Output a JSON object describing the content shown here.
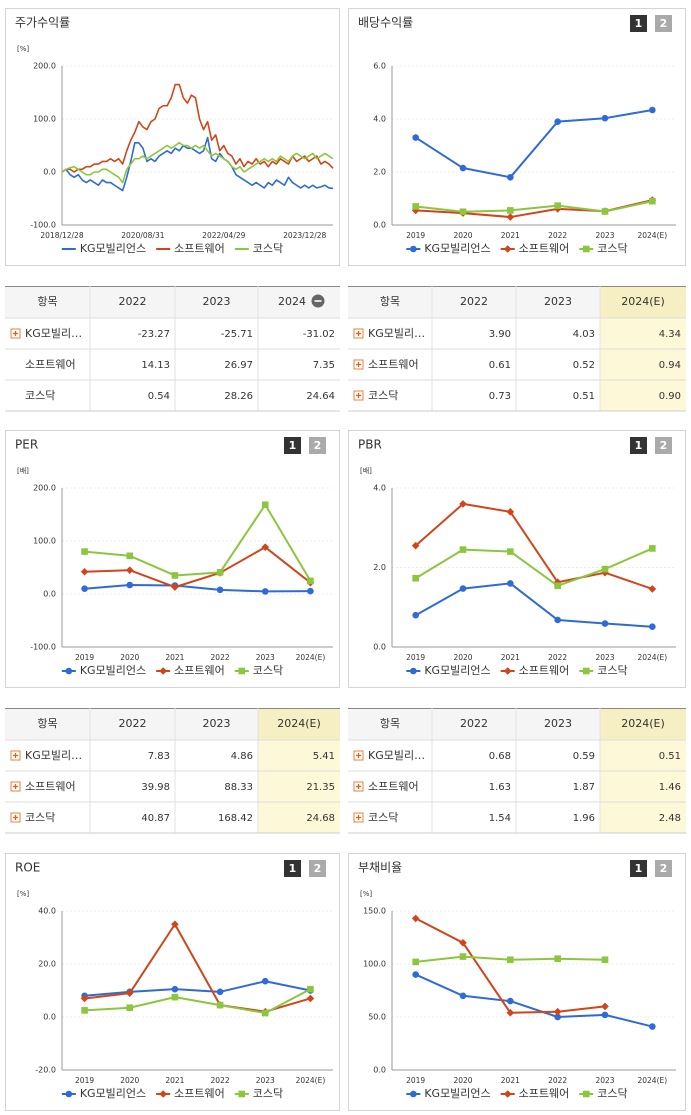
{
  "chart_data": [
    {
      "type": "line",
      "title": "주가수익률",
      "ylabel": "[%]",
      "markers": false,
      "grid": true,
      "categories": [
        "2018/12/28",
        null,
        null,
        null,
        null,
        null,
        null,
        null,
        null,
        null,
        null,
        null,
        null,
        null,
        null,
        null,
        null,
        null,
        null,
        null,
        "2020/08/31",
        null,
        null,
        null,
        null,
        null,
        null,
        null,
        null,
        null,
        null,
        null,
        null,
        null,
        null,
        null,
        null,
        null,
        null,
        null,
        "2022/04/29",
        null,
        null,
        null,
        null,
        null,
        null,
        null,
        null,
        null,
        null,
        null,
        null,
        null,
        null,
        null,
        null,
        null,
        null,
        null,
        "2023/12/28",
        null,
        null,
        null,
        null,
        null,
        null,
        null
      ],
      "ylim": [
        -100,
        200
      ],
      "yticks": [
        {
          "value": -100,
          "label": "-100.0"
        },
        {
          "value": 0,
          "label": "0.0"
        },
        {
          "value": 100,
          "label": "100.0"
        },
        {
          "value": 200,
          "label": "200.0"
        }
      ],
      "series": [
        {
          "name": "KG모빌리언스",
          "color": "#2f6bd5",
          "values": [
            0,
            5,
            -5,
            -10,
            -5,
            -15,
            -20,
            -15,
            -20,
            -25,
            -15,
            -20,
            -20,
            -25,
            -30,
            -35,
            -10,
            20,
            55,
            55,
            45,
            20,
            25,
            20,
            30,
            35,
            40,
            35,
            45,
            40,
            50,
            45,
            45,
            40,
            35,
            40,
            65,
            25,
            20,
            35,
            25,
            20,
            10,
            -5,
            -10,
            -15,
            -20,
            -25,
            -20,
            -25,
            -30,
            -20,
            -25,
            -15,
            -20,
            -25,
            -10,
            -20,
            -25,
            -30,
            -25,
            -30,
            -25,
            -30,
            -28,
            -25,
            -30,
            -31
          ]
        },
        {
          "name": "소프트웨어",
          "color": "#d0461a",
          "values": [
            0,
            5,
            5,
            0,
            5,
            5,
            10,
            10,
            15,
            15,
            20,
            20,
            25,
            20,
            25,
            15,
            40,
            60,
            75,
            95,
            85,
            80,
            95,
            100,
            120,
            125,
            125,
            140,
            165,
            165,
            140,
            130,
            145,
            140,
            100,
            80,
            95,
            60,
            70,
            40,
            50,
            35,
            30,
            15,
            25,
            10,
            20,
            15,
            25,
            15,
            20,
            10,
            20,
            15,
            25,
            20,
            15,
            30,
            20,
            25,
            30,
            20,
            25,
            30,
            15,
            20,
            15,
            7
          ]
        },
        {
          "name": "코스닥",
          "color": "#8cc63e",
          "values": [
            0,
            5,
            8,
            10,
            5,
            0,
            -5,
            -5,
            0,
            0,
            5,
            5,
            0,
            -5,
            -10,
            -20,
            5,
            15,
            25,
            25,
            30,
            25,
            30,
            35,
            40,
            45,
            50,
            45,
            50,
            55,
            50,
            50,
            45,
            50,
            45,
            50,
            40,
            30,
            35,
            30,
            25,
            20,
            10,
            5,
            10,
            0,
            5,
            10,
            15,
            20,
            25,
            20,
            25,
            20,
            30,
            25,
            20,
            30,
            35,
            30,
            25,
            30,
            35,
            25,
            30,
            35,
            30,
            25
          ]
        }
      ]
    },
    {
      "type": "line",
      "title": "배당수익률",
      "tabs": [
        "1",
        "2"
      ],
      "grid": true,
      "categories": [
        "2019",
        "2020",
        "2021",
        "2022",
        "2023",
        "2024(E)"
      ],
      "ylim": [
        0,
        6
      ],
      "yticks": [
        {
          "value": 0,
          "label": "0.0"
        },
        {
          "value": 2,
          "label": "2.0"
        },
        {
          "value": 4,
          "label": "4.0"
        },
        {
          "value": 6,
          "label": "6.0"
        }
      ],
      "series": [
        {
          "name": "KG모빌리언스",
          "color": "#2f6bd5",
          "marker": "circle",
          "values": [
            3.3,
            2.15,
            1.8,
            3.9,
            4.03,
            4.34
          ]
        },
        {
          "name": "소프트웨어",
          "color": "#d0461a",
          "marker": "diamond",
          "values": [
            0.55,
            0.45,
            0.3,
            0.61,
            0.52,
            0.94
          ]
        },
        {
          "name": "코스닥",
          "color": "#8cc63e",
          "marker": "square",
          "values": [
            0.7,
            0.5,
            0.55,
            0.73,
            0.51,
            0.9
          ]
        }
      ]
    },
    {
      "type": "line",
      "title": "PER",
      "tabs": [
        "1",
        "2"
      ],
      "ylabel": "[배]",
      "grid": true,
      "categories": [
        "2019",
        "2020",
        "2021",
        "2022",
        "2023",
        "2024(E)"
      ],
      "ylim": [
        -100,
        200
      ],
      "yticks": [
        {
          "value": -100,
          "label": "-100.0"
        },
        {
          "value": 0,
          "label": "0.0"
        },
        {
          "value": 100,
          "label": "100.0"
        },
        {
          "value": 200,
          "label": "200.0"
        }
      ],
      "series": [
        {
          "name": "KG모빌리언스",
          "color": "#2f6bd5",
          "marker": "circle",
          "values": [
            10,
            17,
            16,
            7.83,
            4.86,
            5.41
          ]
        },
        {
          "name": "소프트웨어",
          "color": "#d0461a",
          "marker": "diamond",
          "values": [
            42,
            45,
            13,
            39.98,
            88.33,
            21.35
          ]
        },
        {
          "name": "코스닥",
          "color": "#8cc63e",
          "marker": "square",
          "values": [
            80,
            72,
            35,
            40.87,
            168.42,
            24.68
          ]
        }
      ]
    },
    {
      "type": "line",
      "title": "PBR",
      "tabs": [
        "1",
        "2"
      ],
      "ylabel": "[배]",
      "grid": true,
      "categories": [
        "2019",
        "2020",
        "2021",
        "2022",
        "2023",
        "2024(E)"
      ],
      "ylim": [
        0,
        4
      ],
      "yticks": [
        {
          "value": 0,
          "label": "0.0"
        },
        {
          "value": 2,
          "label": "2.0"
        },
        {
          "value": 4,
          "label": "4.0"
        }
      ],
      "series": [
        {
          "name": "KG모빌리언스",
          "color": "#2f6bd5",
          "marker": "circle",
          "values": [
            0.8,
            1.47,
            1.6,
            0.68,
            0.59,
            0.51
          ]
        },
        {
          "name": "소프트웨어",
          "color": "#d0461a",
          "marker": "diamond",
          "values": [
            2.55,
            3.6,
            3.4,
            1.63,
            1.87,
            1.46
          ]
        },
        {
          "name": "코스닥",
          "color": "#8cc63e",
          "marker": "square",
          "values": [
            1.73,
            2.45,
            2.4,
            1.54,
            1.96,
            2.48
          ]
        }
      ]
    },
    {
      "type": "line",
      "title": "ROE",
      "tabs": [
        "1",
        "2"
      ],
      "ylabel": "[%]",
      "grid": true,
      "categories": [
        "2019",
        "2020",
        "2021",
        "2022",
        "2023",
        "2024(E)"
      ],
      "ylim": [
        -20,
        40
      ],
      "yticks": [
        {
          "value": -20,
          "label": "-20.0"
        },
        {
          "value": 0,
          "label": "0.0"
        },
        {
          "value": 20,
          "label": "20.0"
        },
        {
          "value": 40,
          "label": "40.0"
        }
      ],
      "series": [
        {
          "name": "KG모빌리언스",
          "color": "#2f6bd5",
          "marker": "circle",
          "values": [
            8,
            9.5,
            10.5,
            9.5,
            13.5,
            10
          ]
        },
        {
          "name": "소프트웨어",
          "color": "#d0461a",
          "marker": "diamond",
          "values": [
            7,
            9,
            35,
            4.5,
            2,
            7
          ]
        },
        {
          "name": "코스닥",
          "color": "#8cc63e",
          "marker": "square",
          "values": [
            2.5,
            3.5,
            7.5,
            4.5,
            1.5,
            10.5
          ]
        }
      ]
    },
    {
      "type": "line",
      "title": "부채비율",
      "tabs": [
        "1",
        "2"
      ],
      "ylabel": "[%]",
      "grid": true,
      "categories": [
        "2019",
        "2020",
        "2021",
        "2022",
        "2023",
        "2024(E)"
      ],
      "ylim": [
        0,
        150
      ],
      "yticks": [
        {
          "value": 0,
          "label": "0.0"
        },
        {
          "value": 50,
          "label": "50.0"
        },
        {
          "value": 100,
          "label": "100.0"
        },
        {
          "value": 150,
          "label": "150.0"
        }
      ],
      "series": [
        {
          "name": "KG모빌리언스",
          "color": "#2f6bd5",
          "marker": "circle",
          "values": [
            90,
            70,
            65,
            50,
            52,
            41
          ]
        },
        {
          "name": "소프트웨어",
          "color": "#d0461a",
          "marker": "diamond",
          "values": [
            143,
            120,
            54,
            55,
            60,
            null
          ]
        },
        {
          "name": "코스닥",
          "color": "#8cc63e",
          "marker": "square",
          "values": [
            102,
            107,
            104,
            105,
            104,
            null
          ]
        }
      ]
    }
  ],
  "tables": [
    {
      "header": [
        "항목",
        "2022",
        "2023",
        "2024"
      ],
      "rows": [
        [
          "KG모빌리…",
          "-23.27",
          "-25.71",
          "-31.02"
        ],
        [
          "소프트웨어",
          "14.13",
          "26.97",
          "7.35"
        ],
        [
          "코스닥",
          "0.54",
          "28.26",
          "24.64"
        ]
      ]
    },
    {
      "header": [
        "항목",
        "2022",
        "2023",
        "2024(E)"
      ],
      "rows": [
        [
          "KG모빌리…",
          "3.90",
          "4.03",
          "4.34"
        ],
        [
          "소프트웨어",
          "0.61",
          "0.52",
          "0.94"
        ],
        [
          "코스닥",
          "0.73",
          "0.51",
          "0.90"
        ]
      ]
    },
    {
      "header": [
        "항목",
        "2022",
        "2023",
        "2024(E)"
      ],
      "rows": [
        [
          "KG모빌리…",
          "7.83",
          "4.86",
          "5.41"
        ],
        [
          "소프트웨어",
          "39.98",
          "88.33",
          "21.35"
        ],
        [
          "코스닥",
          "40.87",
          "168.42",
          "24.68"
        ]
      ]
    },
    {
      "header": [
        "항목",
        "2022",
        "2023",
        "2024(E)"
      ],
      "rows": [
        [
          "KG모빌리…",
          "0.68",
          "0.59",
          "0.51"
        ],
        [
          "소프트웨어",
          "1.63",
          "1.87",
          "1.46"
        ],
        [
          "코스닥",
          "1.54",
          "1.96",
          "2.48"
        ]
      ]
    }
  ]
}
